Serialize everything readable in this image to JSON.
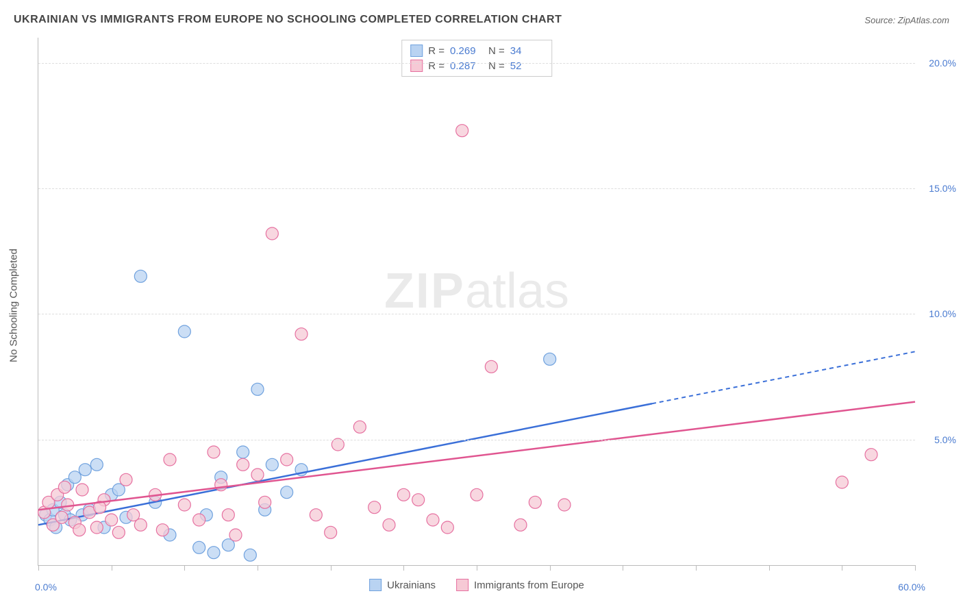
{
  "title": "UKRAINIAN VS IMMIGRANTS FROM EUROPE NO SCHOOLING COMPLETED CORRELATION CHART",
  "source_label": "Source:",
  "source_name": "ZipAtlas.com",
  "watermark_zip": "ZIP",
  "watermark_atlas": "atlas",
  "y_axis_title": "No Schooling Completed",
  "chart": {
    "type": "scatter",
    "xlim": [
      0,
      60
    ],
    "ylim": [
      0,
      21
    ],
    "x_unit": "%",
    "y_unit": "%",
    "x_min_label": "0.0%",
    "x_max_label": "60.0%",
    "y_ticks": [
      5,
      10,
      15,
      20
    ],
    "y_tick_labels": [
      "5.0%",
      "10.0%",
      "15.0%",
      "20.0%"
    ],
    "x_tick_positions": [
      0,
      5,
      10,
      15,
      20,
      25,
      30,
      35,
      40,
      45,
      50,
      55,
      60
    ],
    "grid_color": "#dddddd",
    "axis_color": "#bbbbbb",
    "background_color": "#ffffff",
    "marker_radius": 9,
    "series": [
      {
        "key": "ukr",
        "label": "Ukrainians",
        "fill": "#b9d3f2",
        "stroke": "#6fa1de",
        "line_color": "#3a6fd8",
        "r_value": "0.269",
        "n_value": "34",
        "trend": {
          "x1": 0,
          "y1": 1.6,
          "x2": 60,
          "y2": 8.5,
          "solid_until_x": 42
        },
        "points": [
          [
            0.5,
            2.0
          ],
          [
            0.8,
            1.8
          ],
          [
            1.0,
            2.2
          ],
          [
            1.2,
            1.5
          ],
          [
            1.5,
            2.5
          ],
          [
            1.8,
            2.0
          ],
          [
            2.0,
            3.2
          ],
          [
            2.2,
            1.8
          ],
          [
            2.5,
            3.5
          ],
          [
            3.0,
            2.0
          ],
          [
            3.2,
            3.8
          ],
          [
            3.5,
            2.2
          ],
          [
            4.0,
            4.0
          ],
          [
            4.5,
            1.5
          ],
          [
            5.0,
            2.8
          ],
          [
            5.5,
            3.0
          ],
          [
            6.0,
            1.9
          ],
          [
            7.0,
            11.5
          ],
          [
            8.0,
            2.5
          ],
          [
            9.0,
            1.2
          ],
          [
            10.0,
            9.3
          ],
          [
            11.0,
            0.7
          ],
          [
            11.5,
            2.0
          ],
          [
            12.0,
            0.5
          ],
          [
            12.5,
            3.5
          ],
          [
            13.0,
            0.8
          ],
          [
            14.0,
            4.5
          ],
          [
            14.5,
            0.4
          ],
          [
            15.0,
            7.0
          ],
          [
            15.5,
            2.2
          ],
          [
            16.0,
            4.0
          ],
          [
            17.0,
            2.9
          ],
          [
            18.0,
            3.8
          ],
          [
            35.0,
            8.2
          ]
        ]
      },
      {
        "key": "eur",
        "label": "Immigrants from Europe",
        "fill": "#f6c9d5",
        "stroke": "#e670a0",
        "line_color": "#e05590",
        "r_value": "0.287",
        "n_value": "52",
        "trend": {
          "x1": 0,
          "y1": 2.2,
          "x2": 60,
          "y2": 6.5,
          "solid_until_x": 60
        },
        "points": [
          [
            0.4,
            2.1
          ],
          [
            0.7,
            2.5
          ],
          [
            1.0,
            1.6
          ],
          [
            1.3,
            2.8
          ],
          [
            1.6,
            1.9
          ],
          [
            2.0,
            2.4
          ],
          [
            2.5,
            1.7
          ],
          [
            3.0,
            3.0
          ],
          [
            3.5,
            2.1
          ],
          [
            4.0,
            1.5
          ],
          [
            4.5,
            2.6
          ],
          [
            5.0,
            1.8
          ],
          [
            6.0,
            3.4
          ],
          [
            6.5,
            2.0
          ],
          [
            7.0,
            1.6
          ],
          [
            8.0,
            2.8
          ],
          [
            9.0,
            4.2
          ],
          [
            10.0,
            2.4
          ],
          [
            11.0,
            1.8
          ],
          [
            12.0,
            4.5
          ],
          [
            12.5,
            3.2
          ],
          [
            13.0,
            2.0
          ],
          [
            14.0,
            4.0
          ],
          [
            15.0,
            3.6
          ],
          [
            15.5,
            2.5
          ],
          [
            16.0,
            13.2
          ],
          [
            17.0,
            4.2
          ],
          [
            18.0,
            9.2
          ],
          [
            19.0,
            2.0
          ],
          [
            20.0,
            1.3
          ],
          [
            20.5,
            4.8
          ],
          [
            22.0,
            5.5
          ],
          [
            23.0,
            2.3
          ],
          [
            24.0,
            1.6
          ],
          [
            25.0,
            2.8
          ],
          [
            26.0,
            2.6
          ],
          [
            27.0,
            1.8
          ],
          [
            28.0,
            1.5
          ],
          [
            29.0,
            17.3
          ],
          [
            30.0,
            2.8
          ],
          [
            31.0,
            7.9
          ],
          [
            33.0,
            1.6
          ],
          [
            34.0,
            2.5
          ],
          [
            36.0,
            2.4
          ],
          [
            55.0,
            3.3
          ],
          [
            57.0,
            4.4
          ],
          [
            13.5,
            1.2
          ],
          [
            8.5,
            1.4
          ],
          [
            5.5,
            1.3
          ],
          [
            4.2,
            2.3
          ],
          [
            2.8,
            1.4
          ],
          [
            1.8,
            3.1
          ]
        ]
      }
    ]
  },
  "stats_legend": {
    "r_label": "R =",
    "n_label": "N ="
  }
}
